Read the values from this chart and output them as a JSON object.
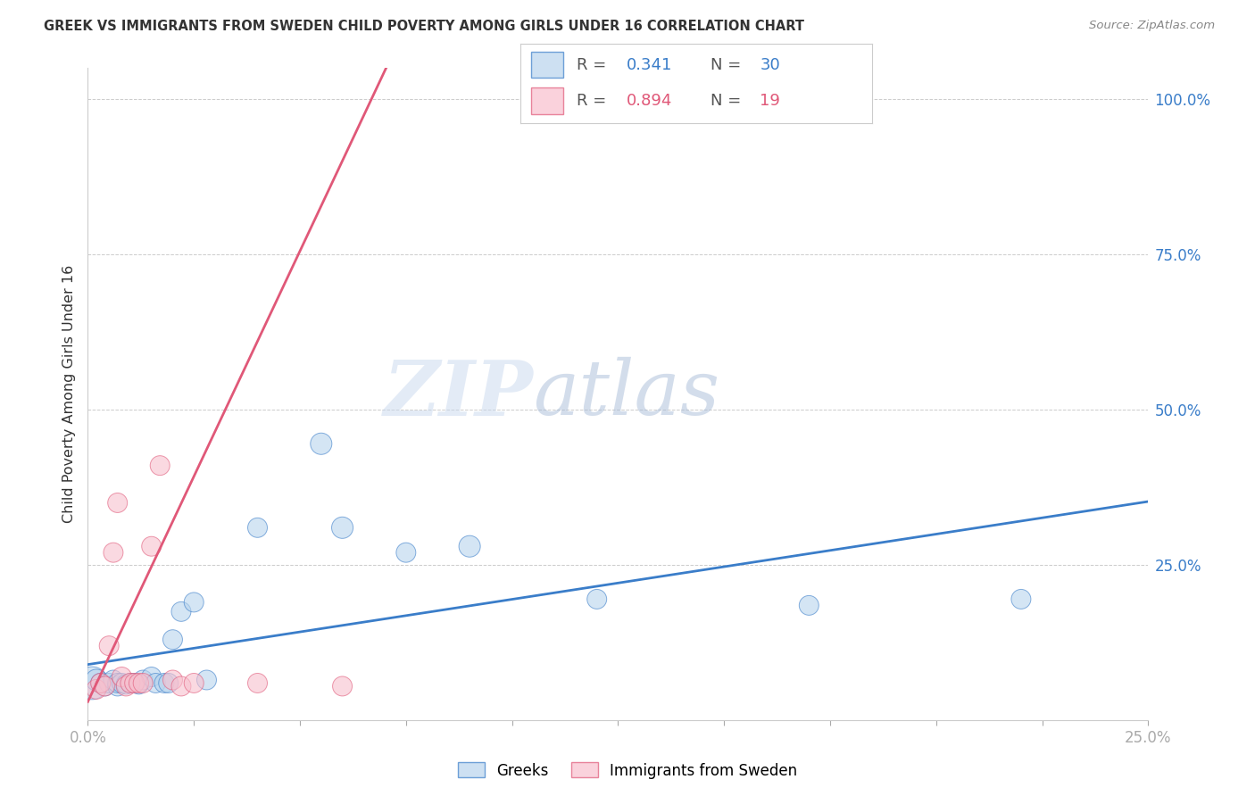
{
  "title": "GREEK VS IMMIGRANTS FROM SWEDEN CHILD POVERTY AMONG GIRLS UNDER 16 CORRELATION CHART",
  "source": "Source: ZipAtlas.com",
  "ylabel": "Child Poverty Among Girls Under 16",
  "watermark_zip": "ZIP",
  "watermark_atlas": "atlas",
  "blue_color": "#b8d4ed",
  "pink_color": "#f8c0ce",
  "blue_line_color": "#3a7dc9",
  "pink_line_color": "#e05878",
  "legend_blue_r": "0.341",
  "legend_blue_n": "30",
  "legend_pink_r": "0.894",
  "legend_pink_n": "19",
  "xlim": [
    0.0,
    0.25
  ],
  "ylim": [
    0.0,
    1.05
  ],
  "yticks": [
    0.0,
    0.25,
    0.5,
    0.75,
    1.0
  ],
  "ytick_labels": [
    "",
    "25.0%",
    "50.0%",
    "75.0%",
    "100.0%"
  ],
  "xticks": [
    0.0,
    0.025,
    0.05,
    0.075,
    0.1,
    0.125,
    0.15,
    0.175,
    0.2,
    0.225,
    0.25
  ],
  "xtick_labels": [
    "0.0%",
    "",
    "",
    "",
    "",
    "",
    "",
    "",
    "",
    "",
    "25.0%"
  ],
  "blue_x": [
    0.001,
    0.002,
    0.003,
    0.004,
    0.005,
    0.006,
    0.007,
    0.007,
    0.008,
    0.009,
    0.01,
    0.011,
    0.012,
    0.013,
    0.015,
    0.016,
    0.018,
    0.019,
    0.02,
    0.022,
    0.025,
    0.028,
    0.04,
    0.055,
    0.06,
    0.075,
    0.09,
    0.12,
    0.17,
    0.22
  ],
  "blue_y": [
    0.06,
    0.065,
    0.06,
    0.055,
    0.06,
    0.065,
    0.055,
    0.06,
    0.06,
    0.058,
    0.06,
    0.06,
    0.058,
    0.065,
    0.07,
    0.06,
    0.06,
    0.06,
    0.13,
    0.175,
    0.19,
    0.065,
    0.31,
    0.445,
    0.31,
    0.27,
    0.28,
    0.195,
    0.185,
    0.195
  ],
  "blue_sizes": [
    700,
    300,
    250,
    250,
    250,
    250,
    250,
    250,
    250,
    250,
    250,
    250,
    250,
    250,
    250,
    250,
    250,
    250,
    250,
    250,
    250,
    250,
    250,
    300,
    300,
    250,
    300,
    250,
    250,
    250
  ],
  "pink_x": [
    0.002,
    0.003,
    0.004,
    0.005,
    0.006,
    0.007,
    0.008,
    0.009,
    0.01,
    0.011,
    0.012,
    0.013,
    0.015,
    0.017,
    0.02,
    0.022,
    0.025,
    0.04,
    0.06
  ],
  "pink_y": [
    0.05,
    0.06,
    0.055,
    0.12,
    0.27,
    0.35,
    0.07,
    0.055,
    0.06,
    0.06,
    0.06,
    0.06,
    0.28,
    0.41,
    0.065,
    0.055,
    0.06,
    0.06,
    0.055
  ],
  "pink_sizes": [
    250,
    250,
    250,
    250,
    250,
    250,
    250,
    250,
    250,
    250,
    250,
    250,
    250,
    250,
    250,
    250,
    250,
    250,
    250
  ],
  "pink_line_x0": 0.0,
  "pink_line_x1": 0.068,
  "blue_line_x0": 0.0,
  "blue_line_x1": 0.25
}
